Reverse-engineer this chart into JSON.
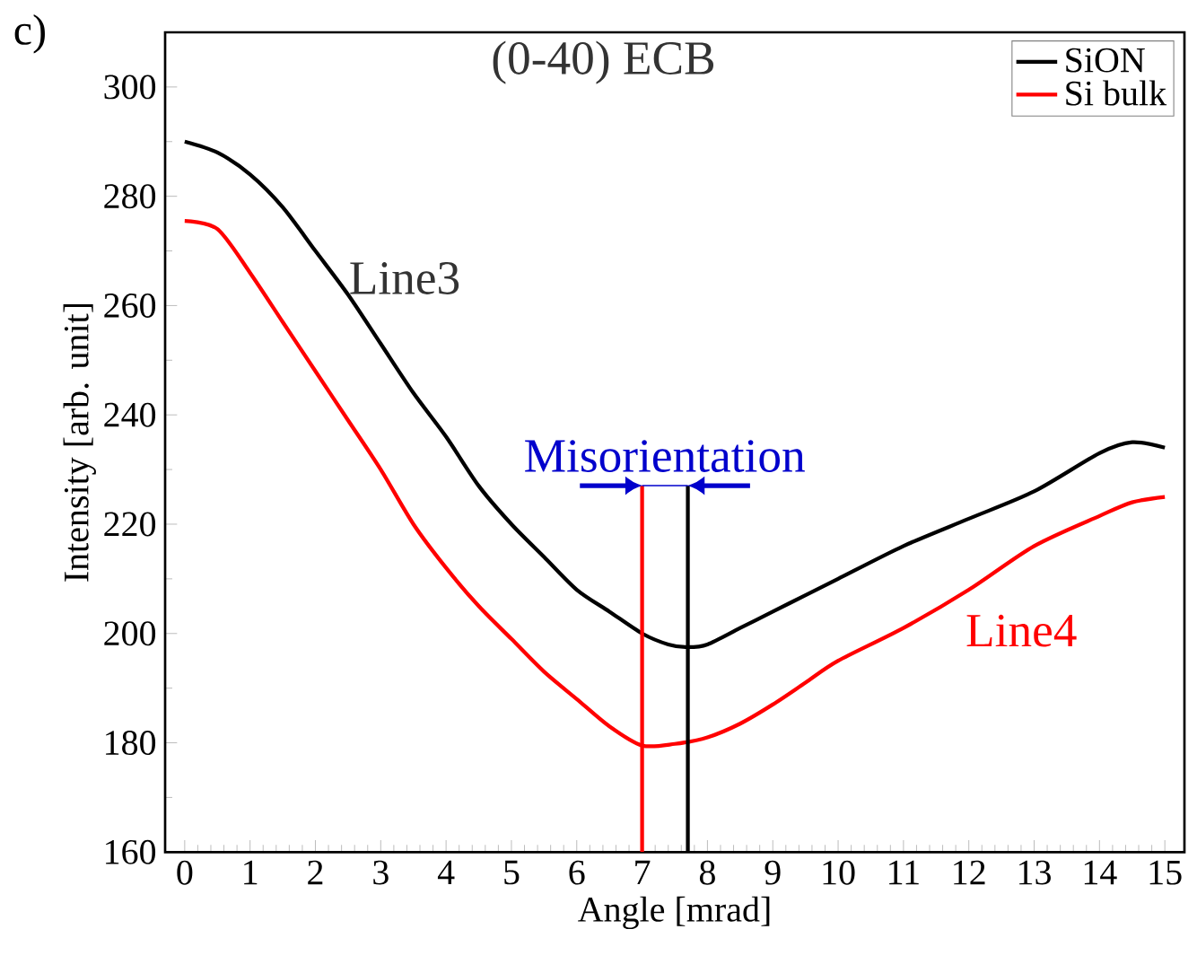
{
  "chart_data": {
    "type": "line",
    "title": "(0-40) ECB",
    "xlabel": "Angle [mrad]",
    "ylabel": "Intensity [arb. unit]",
    "xlim": [
      -0.3,
      15.3
    ],
    "ylim": [
      160,
      310
    ],
    "xticks": [
      0,
      1,
      2,
      3,
      4,
      5,
      6,
      7,
      8,
      9,
      10,
      11,
      12,
      13,
      14,
      15
    ],
    "yticks": [
      160,
      180,
      200,
      220,
      240,
      260,
      280,
      300
    ],
    "legend": "top right",
    "grid": false,
    "marker": "none",
    "line_style": "solid",
    "series": [
      {
        "name": "SiON",
        "color": "#000000",
        "x": [
          0,
          0.5,
          1,
          1.5,
          2,
          2.5,
          3,
          3.5,
          4,
          4.5,
          5,
          5.5,
          6,
          6.5,
          7,
          7.4,
          7.7,
          8,
          8.5,
          9,
          9.5,
          10,
          11,
          12,
          13,
          14,
          14.5,
          15
        ],
        "values": [
          290,
          288,
          284,
          278,
          270,
          262,
          253,
          244,
          236,
          227,
          220,
          214,
          208,
          204,
          200,
          198,
          197.5,
          198,
          201,
          204,
          207,
          210,
          216,
          221,
          226,
          233,
          235,
          234
        ]
      },
      {
        "name": "Si bulk",
        "color": "#ff0000",
        "x": [
          0,
          0.5,
          1,
          1.5,
          2,
          2.5,
          3,
          3.5,
          4,
          4.5,
          5,
          5.5,
          6,
          6.5,
          7,
          7.5,
          8,
          8.5,
          9,
          9.5,
          10,
          11,
          12,
          13,
          14,
          14.5,
          15
        ],
        "values": [
          275.5,
          274,
          266,
          257,
          248,
          239,
          230,
          220,
          212,
          205,
          199,
          193,
          188,
          183,
          179.5,
          179.8,
          181,
          183.5,
          187,
          191,
          195,
          201,
          208,
          216,
          221.5,
          224,
          225
        ]
      }
    ],
    "ref_lines": [
      {
        "axis": "x",
        "value": 7,
        "color": "#ff0000"
      },
      {
        "axis": "x",
        "value": 7.7,
        "color": "#000000"
      }
    ],
    "annotations": [
      "c)",
      "Misorientation",
      "Line3",
      "Line4"
    ]
  }
}
